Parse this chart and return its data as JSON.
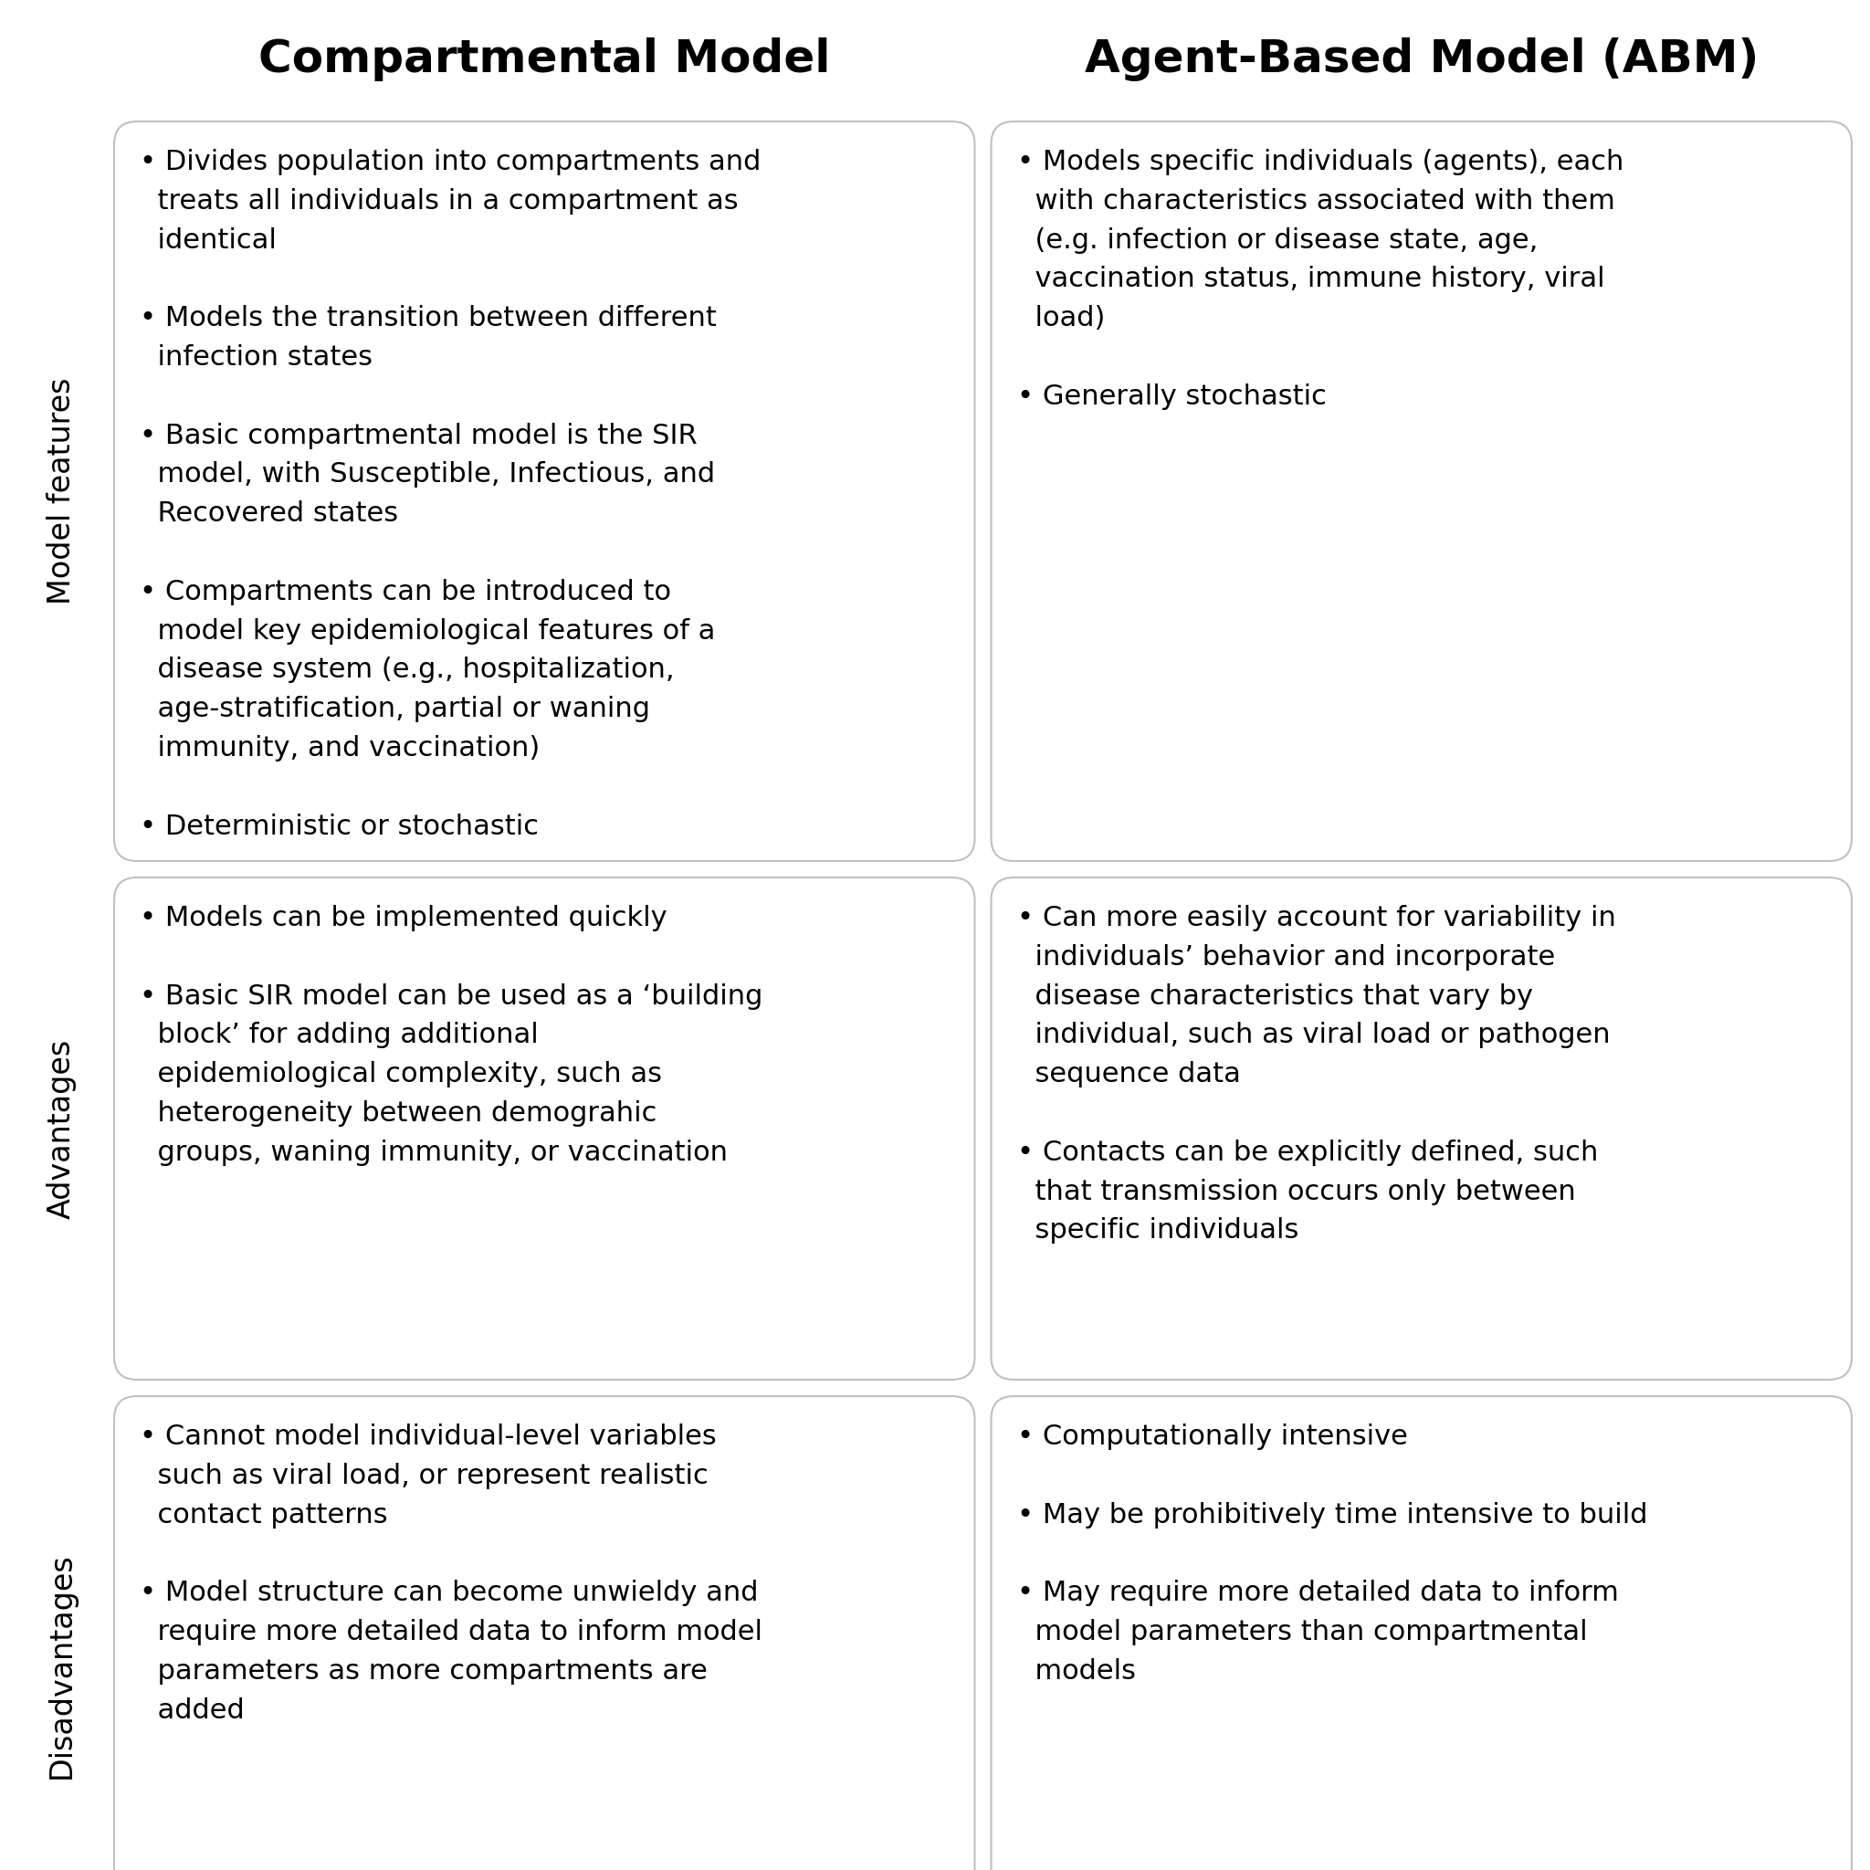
{
  "col1_title": "Compartmental Model",
  "col2_title": "Agent-Based Model (ABM)",
  "row_labels": [
    "Model features",
    "Advantages",
    "Disadvantages"
  ],
  "background_color": "#ffffff",
  "box_color": "#ffffff",
  "box_edge_color": "#c0c0c0",
  "text_color": "#000000",
  "title_color": "#000000",
  "title_fontsize": 36,
  "body_fontsize": 22,
  "label_fontsize": 24,
  "cells": [
    [
      "• Divides population into compartments and\n  treats all individuals in a compartment as\n  identical\n\n• Models the transition between different\n  infection states\n\n• Basic compartmental model is the SIR\n  model, with Susceptible, Infectious, and\n  Recovered states\n\n• Compartments can be introduced to\n  model key epidemiological features of a\n  disease system (e.g., hospitalization,\n  age-stratification, partial or waning\n  immunity, and vaccination)\n\n• Deterministic or stochastic",
      "• Models specific individuals (agents), each\n  with characteristics associated with them\n  (e.g. infection or disease state, age,\n  vaccination status, immune history, viral\n  load)\n\n• Generally stochastic"
    ],
    [
      "• Models can be implemented quickly\n\n• Basic SIR model can be used as a ‘building\n  block’ for adding additional\n  epidemiological complexity, such as\n  heterogeneity between demograhic\n  groups, waning immunity, or vaccination",
      "• Can more easily account for variability in\n  individuals’ behavior and incorporate\n  disease characteristics that vary by\n  individual, such as viral load or pathogen\n  sequence data\n\n• Contacts can be explicitly defined, such\n  that transmission occurs only between\n  specific individuals"
    ],
    [
      "• Cannot model individual-level variables\n  such as viral load, or represent realistic\n  contact patterns\n\n• Model structure can become unwieldy and\n  require more detailed data to inform model\n  parameters as more compartments are\n  added",
      "• Computationally intensive\n\n• May be prohibitively time intensive to build\n\n• May require more detailed data to inform\n  model parameters than compartmental\n  models"
    ]
  ]
}
